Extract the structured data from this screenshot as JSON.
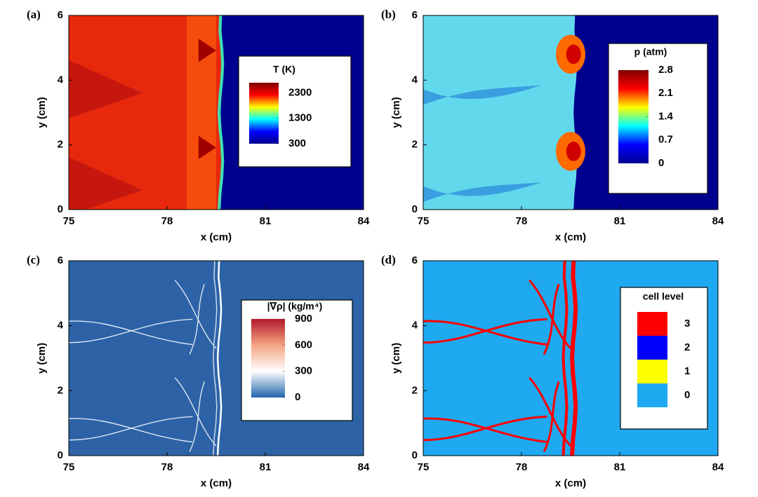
{
  "chart_data": [
    {
      "type": "heatmap",
      "panel": "(a)",
      "xlabel": "x (cm)",
      "ylabel": "y (cm)",
      "xlim": [
        75,
        84
      ],
      "xticks": [
        75,
        78,
        81,
        84
      ],
      "ylim": [
        0,
        6
      ],
      "yticks": [
        0,
        2,
        4,
        6
      ],
      "colorbar_title": "T (K)",
      "clim": [
        300,
        2700
      ],
      "cticks": [
        300,
        1300,
        2300
      ],
      "colormap": [
        "#00008f",
        "#0000ff",
        "#00ffff",
        "#ffff00",
        "#ff0000",
        "#800000"
      ]
    },
    {
      "type": "heatmap",
      "panel": "(b)",
      "xlabel": "x (cm)",
      "ylabel": "y (cm)",
      "xlim": [
        75,
        84
      ],
      "xticks": [
        75,
        78,
        81,
        84
      ],
      "ylim": [
        0,
        6
      ],
      "yticks": [
        0,
        2,
        4,
        6
      ],
      "colorbar_title": "p (atm)",
      "clim": [
        0,
        2.8
      ],
      "cticks": [
        0,
        0.7,
        1.4,
        2.1,
        2.8
      ],
      "colormap": [
        "#00008f",
        "#0000ff",
        "#00ffff",
        "#ffff00",
        "#ff0000",
        "#800000"
      ]
    },
    {
      "type": "heatmap",
      "panel": "(c)",
      "xlabel": "x (cm)",
      "ylabel": "y (cm)",
      "xlim": [
        75,
        84
      ],
      "xticks": [
        75,
        78,
        81,
        84
      ],
      "ylim": [
        0,
        6
      ],
      "yticks": [
        0,
        2,
        4,
        6
      ],
      "colorbar_title": "|∇ρ| (kg/m⁴)",
      "clim": [
        0,
        900
      ],
      "cticks": [
        0,
        300,
        600,
        900
      ],
      "colormap": [
        "#2166ac",
        "#ffffff",
        "#f4a582",
        "#b2182b"
      ]
    },
    {
      "type": "levels",
      "panel": "(d)",
      "xlabel": "x (cm)",
      "ylabel": "y (cm)",
      "xlim": [
        75,
        84
      ],
      "xticks": [
        75,
        78,
        81,
        84
      ],
      "ylim": [
        0,
        6
      ],
      "yticks": [
        0,
        2,
        4,
        6
      ],
      "legend_title": "cell level",
      "levels": [
        0,
        1,
        2,
        3
      ],
      "level_colors": [
        "#1ea9f0",
        "#ffff00",
        "#0000ff",
        "#ff0000"
      ]
    }
  ]
}
